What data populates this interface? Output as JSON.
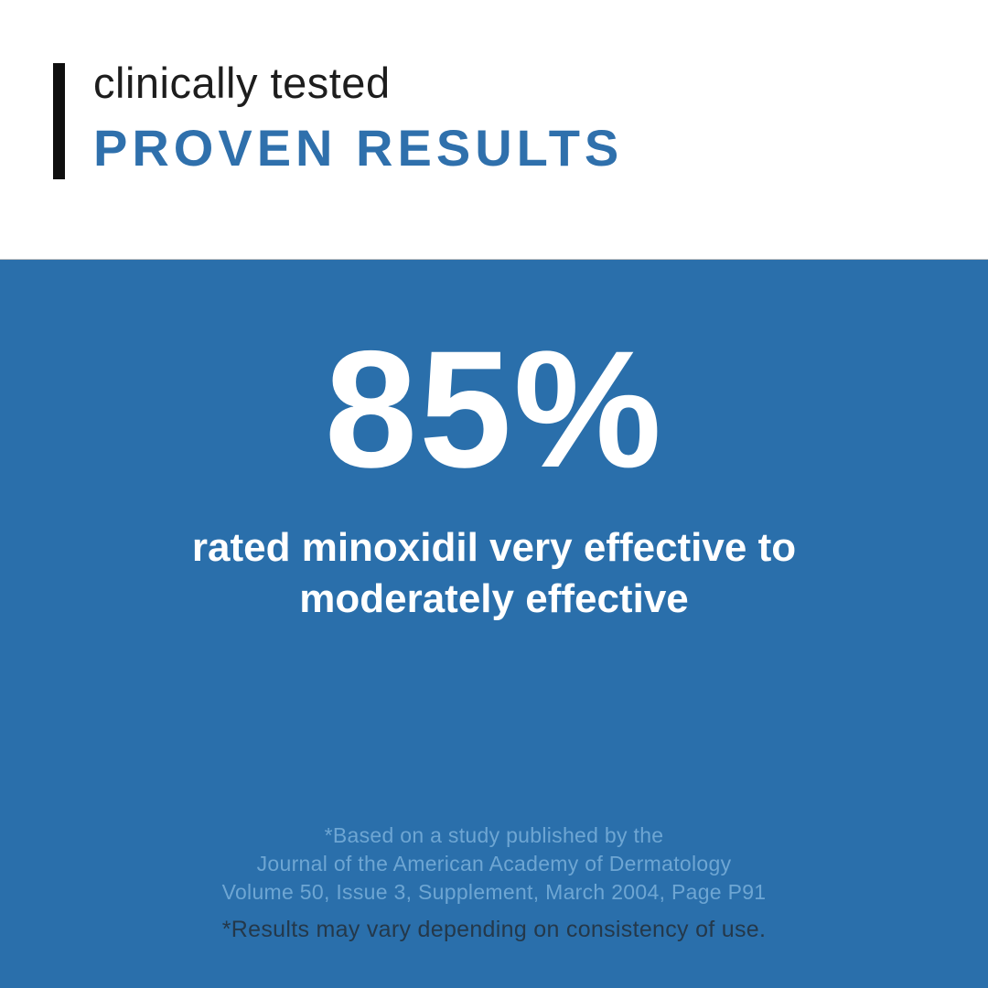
{
  "header": {
    "eyebrow": "clinically tested",
    "title": "PROVEN RESULTS"
  },
  "panel": {
    "stat_value": "85%",
    "stat_description": "rated minoxidil very effective to\nmoderately effective",
    "source_note": "*Based on a study published by the\nJournal of the American Academy of Dermatology\nVolume 50, Issue 3, Supplement, March 2004, Page P91",
    "disclaimer": "*Results may vary depending on consistency of use."
  },
  "colors": {
    "panel_blue": "#2a6fab",
    "title_blue": "#2f70ac",
    "source_note_light_blue": "#6ea6d3",
    "disclaimer_dark": "#24384a",
    "accent_bar_black": "#0f0f0f",
    "eyebrow_black": "#1d1d1d",
    "stat_white": "#ffffff",
    "background_white": "#ffffff"
  }
}
